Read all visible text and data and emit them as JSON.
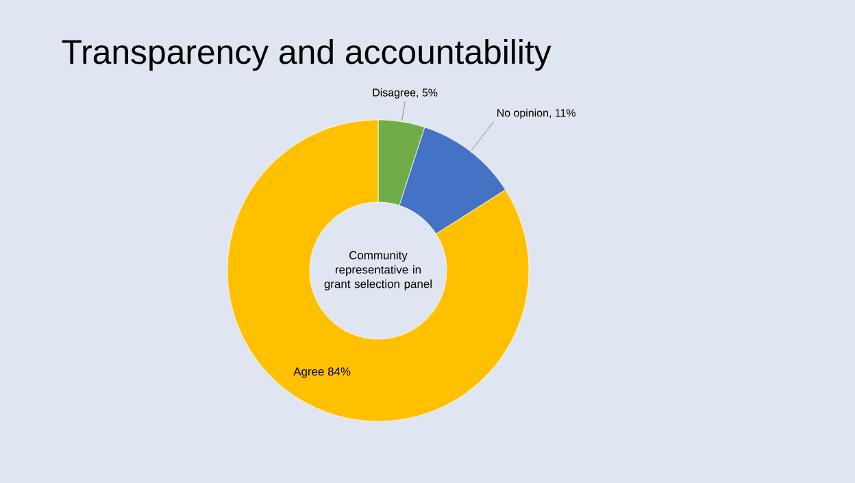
{
  "chart_data": {
    "type": "donut",
    "title": "Transparency and accountability",
    "categories": [
      "Disagree",
      "No opinion",
      "Agree"
    ],
    "values": [
      5,
      11,
      84
    ],
    "value_labels": [
      ", 5%",
      ", 11%",
      "84%"
    ],
    "colors": [
      "#70ad47",
      "#4472c4",
      "#ffc000"
    ],
    "annotations": [
      "Community representative in grant selection panel"
    ]
  }
}
